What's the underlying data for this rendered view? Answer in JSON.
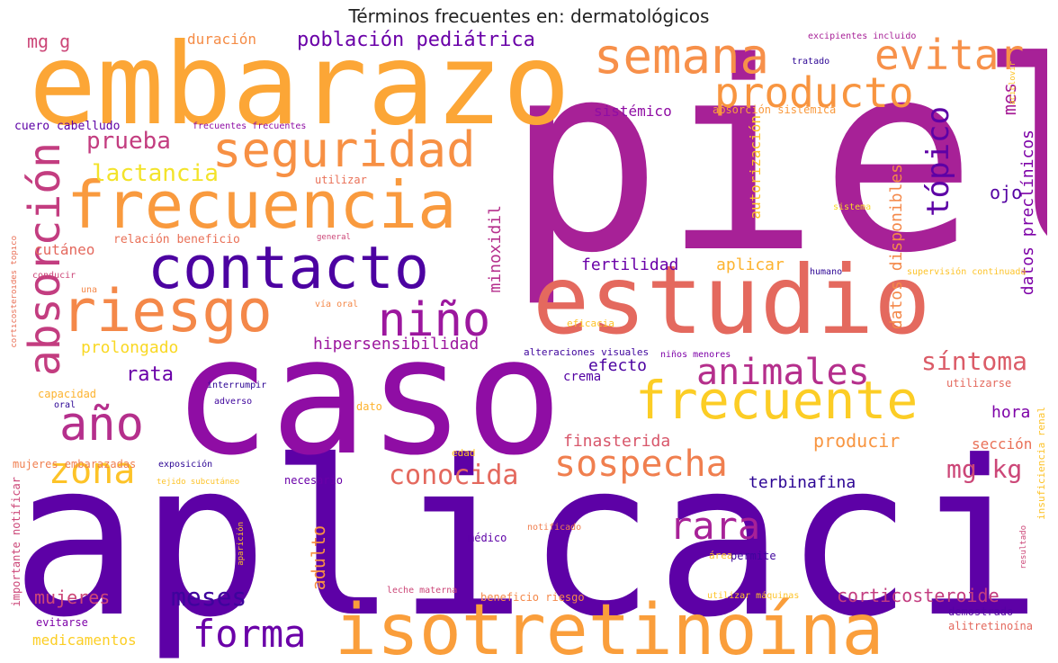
{
  "chart_data": {
    "type": "wordcloud",
    "title": "Términos frecuentes en: dermatológicos",
    "colormap": "plasma",
    "words": [
      {
        "text": "piel",
        "color": "#a72197"
      },
      {
        "text": "aplicación",
        "color": "#5d01a6"
      },
      {
        "text": "caso",
        "color": "#8f0da4"
      },
      {
        "text": "embarazo",
        "color": "#fca636"
      },
      {
        "text": "estudio",
        "color": "#e4695e"
      },
      {
        "text": "isotretinoína",
        "color": "#fa9e3b"
      },
      {
        "text": "frecuencia",
        "color": "#f99a3e"
      },
      {
        "text": "contacto",
        "color": "#4c02a1"
      },
      {
        "text": "riesgo",
        "color": "#f48849"
      },
      {
        "text": "seguridad",
        "color": "#f79044"
      },
      {
        "text": "semana",
        "color": "#f7904a"
      },
      {
        "text": "frecuente",
        "color": "#fccd25"
      },
      {
        "text": "producto",
        "color": "#f89540"
      },
      {
        "text": "absorción",
        "color": "#c33d80"
      },
      {
        "text": "niño",
        "color": "#9c179e"
      },
      {
        "text": "animales",
        "color": "#b52f8c"
      },
      {
        "text": "evitar",
        "color": "#f7914a"
      },
      {
        "text": "año",
        "color": "#b52f8c"
      },
      {
        "text": "sospecha",
        "color": "#f07f4f"
      },
      {
        "text": "zona",
        "color": "#fdc328"
      },
      {
        "text": "forma",
        "color": "#6a00a8"
      },
      {
        "text": "rara",
        "color": "#a72197"
      },
      {
        "text": "meses",
        "color": "#3e049c"
      },
      {
        "text": "conocida",
        "color": "#e4695e"
      },
      {
        "text": "lactancia",
        "color": "#f3e32a"
      },
      {
        "text": "prueba",
        "color": "#c33d80"
      },
      {
        "text": "tópico",
        "color": "#5d01a6"
      },
      {
        "text": "síntoma",
        "color": "#db5c68"
      },
      {
        "text": "mg kg",
        "color": "#cc4778"
      },
      {
        "text": "población pediátrica",
        "color": "#6a00a8"
      },
      {
        "text": "corticosteroide",
        "color": "#c33d80"
      },
      {
        "text": "adulto",
        "color": "#f79044"
      },
      {
        "text": "hipersensibilidad",
        "color": "#9c179e"
      },
      {
        "text": "mujeres",
        "color": "#cc4778"
      },
      {
        "text": "producir",
        "color": "#f89540"
      },
      {
        "text": "finasterida",
        "color": "#d8576b"
      },
      {
        "text": "efecto",
        "color": "#4c02a1"
      },
      {
        "text": "rata",
        "color": "#6a00a8"
      },
      {
        "text": "terbinafina",
        "color": "#2c0594"
      },
      {
        "text": "prolongado",
        "color": "#f9d824"
      },
      {
        "text": "fertilidad",
        "color": "#6a00a8"
      },
      {
        "text": "aplicar",
        "color": "#fdb32f"
      },
      {
        "text": "hora",
        "color": "#7e03a8"
      },
      {
        "text": "medicamentos",
        "color": "#fcce25"
      },
      {
        "text": "minoxidil",
        "color": "#b52f8c"
      },
      {
        "text": "datos disponibles",
        "color": "#f48849"
      },
      {
        "text": "datos preclínicos",
        "color": "#7e03a8"
      },
      {
        "text": "ojo",
        "color": "#5402a3"
      },
      {
        "text": "mes",
        "color": "#a72197"
      },
      {
        "text": "duración",
        "color": "#f58c46"
      },
      {
        "text": "mg g",
        "color": "#cc4778"
      },
      {
        "text": "sistémico",
        "color": "#8f0da4"
      },
      {
        "text": "cutáneo",
        "color": "#e4695e"
      },
      {
        "text": "sección",
        "color": "#e97158"
      },
      {
        "text": "autorización",
        "color": "#fdc328"
      },
      {
        "text": "crema",
        "color": "#5402a3"
      },
      {
        "text": "relación beneficio",
        "color": "#e97158"
      },
      {
        "text": "cuero cabelludo",
        "color": "#5d01a6"
      },
      {
        "text": "absorción sistémica",
        "color": "#f99a3e"
      },
      {
        "text": "alteraciones visuales",
        "color": "#3e049c"
      },
      {
        "text": "capacidad",
        "color": "#fdb32f"
      },
      {
        "text": "utilizarse",
        "color": "#e4695e"
      },
      {
        "text": "mujeres embarazadas",
        "color": "#f07f4f"
      },
      {
        "text": "demostrado",
        "color": "#5402a3"
      },
      {
        "text": "alitretinoína",
        "color": "#e4695e"
      },
      {
        "text": "beneficio riesgo",
        "color": "#f48849"
      },
      {
        "text": "necesario",
        "color": "#6a00a8"
      },
      {
        "text": "médico",
        "color": "#5d01a6"
      },
      {
        "text": "evitarse",
        "color": "#7e03a8"
      },
      {
        "text": "importante notificar",
        "color": "#cc4778"
      },
      {
        "text": "insuficiencia renal",
        "color": "#fdc328"
      },
      {
        "text": "corticosteroides tópico",
        "color": "#e97158"
      },
      {
        "text": "utilizar",
        "color": "#e97158"
      },
      {
        "text": "interrumpir",
        "color": "#2c0594"
      },
      {
        "text": "dato",
        "color": "#fdb32f"
      },
      {
        "text": "edad",
        "color": "#fdc328"
      },
      {
        "text": "excipientes incluido",
        "color": "#a72197"
      },
      {
        "text": "frecuentes frecuentes",
        "color": "#8f0da4"
      },
      {
        "text": "tratado",
        "color": "#2c0594"
      },
      {
        "text": "aciclovir",
        "color": "#fdc328"
      },
      {
        "text": "sistema",
        "color": "#f9d824"
      },
      {
        "text": "general",
        "color": "#cc4778"
      },
      {
        "text": "conducir",
        "color": "#cc4778"
      },
      {
        "text": "una",
        "color": "#f48849"
      },
      {
        "text": "vía oral",
        "color": "#f48849"
      },
      {
        "text": "supervisión continuada",
        "color": "#fdc328"
      },
      {
        "text": "humano",
        "color": "#2c0594"
      },
      {
        "text": "eficacia",
        "color": "#fdc328"
      },
      {
        "text": "niños menores",
        "color": "#7e03a8"
      },
      {
        "text": "adverso",
        "color": "#3e049c"
      },
      {
        "text": "oral",
        "color": "#2c0594"
      },
      {
        "text": "exposición",
        "color": "#2c0594"
      },
      {
        "text": "tejido subcutáneo",
        "color": "#fdc328"
      },
      {
        "text": "aparición",
        "color": "#fdc328"
      },
      {
        "text": "notificado",
        "color": "#f07f4f"
      },
      {
        "text": "área",
        "color": "#fdc328"
      },
      {
        "text": "permite",
        "color": "#3e049c"
      },
      {
        "text": "resultado",
        "color": "#cc4778"
      },
      {
        "text": "leche materna",
        "color": "#cc4778"
      },
      {
        "text": "utilizar máquinas",
        "color": "#fdc328"
      }
    ]
  }
}
